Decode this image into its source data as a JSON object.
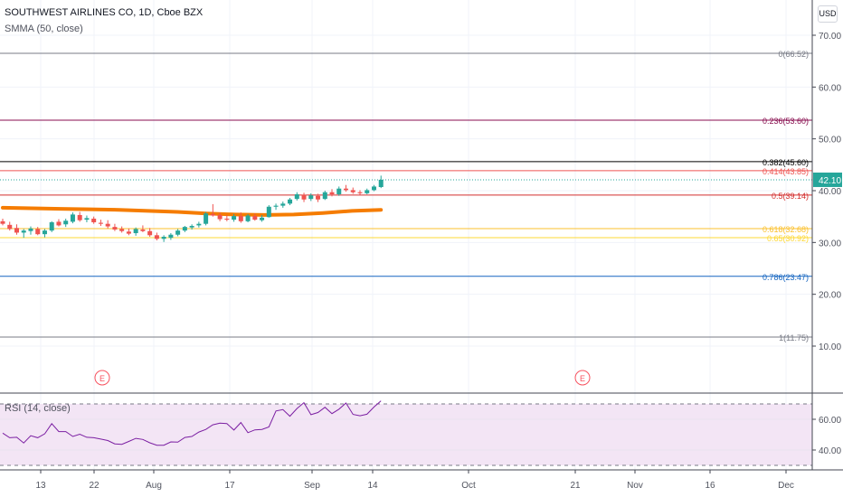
{
  "header": {
    "title": "SOUTHWEST AIRLINES CO, 1D, Cboe BZX",
    "indicator": "SMMA (50, close)",
    "currency_button": "USD"
  },
  "rsi": {
    "title": "RSI (14, close)",
    "ticks": [
      "60.00",
      "40.00"
    ]
  },
  "colors": {
    "up": "#26a69a",
    "down": "#ef5350",
    "smma": "#f57c00",
    "rsi_line": "#7b1fa2",
    "rsi_band": "#f3e5f5",
    "last_price_bg": "#26a69a"
  },
  "chart_data": [
    {
      "type": "candlestick",
      "title": "SOUTHWEST AIRLINES CO, 1D, Cboe BZX",
      "y_axis": {
        "ticks": [
          10,
          20,
          30,
          40,
          50,
          60,
          70
        ],
        "tick_labels": [
          "10.00",
          "20.00",
          "30.00",
          "40.00",
          "50.00",
          "60.00",
          "70.00"
        ],
        "range": [
          4,
          74
        ]
      },
      "x_axis": {
        "labels": [
          "13",
          "22",
          "Aug",
          "17",
          "Sep",
          "14",
          "Oct",
          "21",
          "Nov",
          "16",
          "Dec"
        ]
      },
      "last_price": {
        "value": 42.1,
        "label": "42.10"
      },
      "candles": [
        {
          "date": "Jul 6",
          "o": 34.1,
          "h": 34.6,
          "l": 33.3,
          "c": 33.6
        },
        {
          "date": "Jul 7",
          "o": 33.4,
          "h": 34.0,
          "l": 32.3,
          "c": 32.6
        },
        {
          "date": "Jul 8",
          "o": 32.8,
          "h": 33.5,
          "l": 31.5,
          "c": 31.9
        },
        {
          "date": "Jul 9",
          "o": 31.9,
          "h": 32.6,
          "l": 30.9,
          "c": 32.3
        },
        {
          "date": "Jul 10",
          "o": 32.2,
          "h": 33.1,
          "l": 31.5,
          "c": 32.7
        },
        {
          "date": "Jul 13",
          "o": 32.6,
          "h": 33.0,
          "l": 31.4,
          "c": 31.6
        },
        {
          "date": "Jul 14",
          "o": 31.6,
          "h": 32.6,
          "l": 31.0,
          "c": 32.3
        },
        {
          "date": "Jul 15",
          "o": 32.3,
          "h": 34.1,
          "l": 32.0,
          "c": 33.9
        },
        {
          "date": "Jul 16",
          "o": 34.0,
          "h": 34.5,
          "l": 33.1,
          "c": 33.3
        },
        {
          "date": "Jul 17",
          "o": 33.5,
          "h": 34.6,
          "l": 33.0,
          "c": 34.2
        },
        {
          "date": "Jul 20",
          "o": 34.0,
          "h": 35.8,
          "l": 33.7,
          "c": 35.4
        },
        {
          "date": "Jul 21",
          "o": 35.3,
          "h": 35.9,
          "l": 34.0,
          "c": 34.3
        },
        {
          "date": "Jul 22",
          "o": 34.4,
          "h": 35.2,
          "l": 33.9,
          "c": 34.7
        },
        {
          "date": "Jul 23",
          "o": 34.6,
          "h": 35.0,
          "l": 33.6,
          "c": 33.9
        },
        {
          "date": "Jul 24",
          "o": 33.8,
          "h": 34.4,
          "l": 33.2,
          "c": 33.6
        },
        {
          "date": "Jul 27",
          "o": 33.6,
          "h": 34.3,
          "l": 32.7,
          "c": 33.1
        },
        {
          "date": "Jul 28",
          "o": 33.0,
          "h": 33.6,
          "l": 32.2,
          "c": 32.5
        },
        {
          "date": "Jul 29",
          "o": 32.6,
          "h": 33.1,
          "l": 31.9,
          "c": 32.2
        },
        {
          "date": "Jul 30",
          "o": 32.1,
          "h": 32.7,
          "l": 31.4,
          "c": 31.7
        },
        {
          "date": "Jul 31",
          "o": 31.8,
          "h": 32.9,
          "l": 31.3,
          "c": 32.6
        },
        {
          "date": "Aug 3",
          "o": 32.5,
          "h": 33.3,
          "l": 32.0,
          "c": 32.2
        },
        {
          "date": "Aug 4",
          "o": 32.2,
          "h": 32.8,
          "l": 31.1,
          "c": 31.4
        },
        {
          "date": "Aug 5",
          "o": 31.4,
          "h": 31.9,
          "l": 30.4,
          "c": 30.7
        },
        {
          "date": "Aug 6",
          "o": 30.7,
          "h": 31.4,
          "l": 30.1,
          "c": 31.1
        },
        {
          "date": "Aug 7",
          "o": 30.9,
          "h": 31.8,
          "l": 30.5,
          "c": 31.5
        },
        {
          "date": "Aug 10",
          "o": 31.5,
          "h": 32.6,
          "l": 31.2,
          "c": 32.3
        },
        {
          "date": "Aug 11",
          "o": 32.3,
          "h": 33.2,
          "l": 32.0,
          "c": 33.0
        },
        {
          "date": "Aug 12",
          "o": 32.9,
          "h": 33.5,
          "l": 32.5,
          "c": 33.2
        },
        {
          "date": "Aug 13",
          "o": 33.3,
          "h": 34.0,
          "l": 32.9,
          "c": 33.6
        },
        {
          "date": "Aug 14",
          "o": 33.6,
          "h": 35.9,
          "l": 33.3,
          "c": 35.6
        },
        {
          "date": "Aug 17",
          "o": 35.5,
          "h": 37.4,
          "l": 35.0,
          "c": 35.2
        },
        {
          "date": "Aug 18",
          "o": 35.3,
          "h": 35.8,
          "l": 34.1,
          "c": 34.5
        },
        {
          "date": "Aug 19",
          "o": 34.6,
          "h": 35.3,
          "l": 34.1,
          "c": 34.4
        },
        {
          "date": "Aug 20",
          "o": 34.4,
          "h": 35.5,
          "l": 34.0,
          "c": 35.1
        },
        {
          "date": "Aug 21",
          "o": 35.1,
          "h": 35.8,
          "l": 33.8,
          "c": 34.1
        },
        {
          "date": "Aug 24",
          "o": 34.1,
          "h": 35.5,
          "l": 33.9,
          "c": 35.2
        },
        {
          "date": "Aug 25",
          "o": 35.1,
          "h": 35.6,
          "l": 34.2,
          "c": 34.4
        },
        {
          "date": "Aug 26",
          "o": 34.3,
          "h": 35.3,
          "l": 34.0,
          "c": 34.8
        },
        {
          "date": "Aug 27",
          "o": 34.9,
          "h": 37.2,
          "l": 34.8,
          "c": 36.9
        },
        {
          "date": "Aug 28",
          "o": 36.9,
          "h": 37.5,
          "l": 36.3,
          "c": 37.1
        },
        {
          "date": "Aug 31",
          "o": 37.1,
          "h": 37.9,
          "l": 36.7,
          "c": 37.5
        },
        {
          "date": "Sep 1",
          "o": 37.5,
          "h": 38.6,
          "l": 37.2,
          "c": 38.3
        },
        {
          "date": "Sep 2",
          "o": 38.4,
          "h": 39.7,
          "l": 38.1,
          "c": 39.3
        },
        {
          "date": "Sep 3",
          "o": 39.2,
          "h": 39.6,
          "l": 37.8,
          "c": 38.3
        },
        {
          "date": "Sep 4",
          "o": 38.4,
          "h": 39.5,
          "l": 38.0,
          "c": 39.1
        },
        {
          "date": "Sep 8",
          "o": 39.0,
          "h": 39.4,
          "l": 37.8,
          "c": 38.3
        },
        {
          "date": "Sep 9",
          "o": 38.4,
          "h": 40.0,
          "l": 38.2,
          "c": 39.7
        },
        {
          "date": "Sep 10",
          "o": 39.7,
          "h": 40.3,
          "l": 38.9,
          "c": 39.3
        },
        {
          "date": "Sep 11",
          "o": 39.3,
          "h": 40.8,
          "l": 39.0,
          "c": 40.4
        },
        {
          "date": "Sep 14",
          "o": 40.4,
          "h": 41.1,
          "l": 39.8,
          "c": 40.1
        },
        {
          "date": "Sep 15",
          "o": 40.1,
          "h": 40.6,
          "l": 39.4,
          "c": 39.7
        },
        {
          "date": "Sep 16",
          "o": 39.7,
          "h": 40.1,
          "l": 39.2,
          "c": 39.5
        },
        {
          "date": "Sep 17",
          "o": 39.5,
          "h": 40.4,
          "l": 39.3,
          "c": 40.1
        },
        {
          "date": "Sep 18",
          "o": 40.1,
          "h": 41.1,
          "l": 39.9,
          "c": 40.8
        },
        {
          "date": "Sep 21",
          "o": 40.7,
          "h": 42.9,
          "l": 40.5,
          "c": 42.1
        }
      ],
      "smma": [
        36.7,
        36.6,
        36.5,
        36.4,
        36.3,
        36.1,
        35.9,
        35.6,
        35.4,
        35.3,
        35.4,
        35.7,
        36.1,
        36.3
      ],
      "fibonacci": [
        {
          "ratio": "0",
          "price": 66.52,
          "label": "0(66.52)",
          "color": "#787b86"
        },
        {
          "ratio": "0.236",
          "price": 53.6,
          "label": "0.236(53.60)",
          "color": "#880e4f"
        },
        {
          "ratio": "0.382",
          "price": 45.6,
          "label": "0.382(45.60)",
          "color": "#000000"
        },
        {
          "ratio": "0.414",
          "price": 43.85,
          "label": "0.414(43.85)",
          "color": "#ef5350"
        },
        {
          "ratio": "0.5",
          "price": 39.14,
          "label": "0.5(39.14)",
          "color": "#d32f2f"
        },
        {
          "ratio": "0.618",
          "price": 32.68,
          "label": "0.618(32.68)",
          "color": "#fbc02d"
        },
        {
          "ratio": "0.65",
          "price": 30.92,
          "label": "0.65(30.92)",
          "color": "#fdd835"
        },
        {
          "ratio": "0.786",
          "price": 23.47,
          "label": "0.786(23.47)",
          "color": "#1565c0"
        },
        {
          "ratio": "1",
          "price": 11.75,
          "label": "1(11.75)",
          "color": "#787b86"
        }
      ],
      "earnings_markers": [
        {
          "date": "Jul 23",
          "label": "E"
        },
        {
          "date": "Oct 22",
          "label": "E"
        }
      ]
    },
    {
      "type": "line",
      "title": "RSI (14, close)",
      "y_axis": {
        "range": [
          24,
          76
        ],
        "ticks": [
          60,
          40
        ],
        "tick_labels": [
          "60.00",
          "40.00"
        ]
      },
      "bands": {
        "upper": 70,
        "lower": 30
      },
      "values": [
        51.0,
        48.0,
        48.3,
        44.6,
        49.3,
        48.0,
        50.6,
        57.2,
        52.0,
        52.0,
        48.8,
        50.3,
        48.3,
        48.0,
        47.1,
        46.2,
        44.0,
        43.7,
        45.6,
        47.6,
        46.9,
        44.7,
        43.1,
        43.1,
        45.3,
        45.1,
        48.2,
        48.8,
        51.7,
        53.4,
        56.4,
        57.5,
        57.2,
        53.0,
        57.9,
        51.3,
        53.1,
        53.4,
        55.0,
        65.4,
        66.3,
        62.0,
        67.0,
        70.8,
        63.0,
        64.4,
        67.8,
        63.7,
        66.6,
        70.6,
        63.2,
        62.3,
        63.3,
        68.0,
        72.0
      ]
    }
  ]
}
